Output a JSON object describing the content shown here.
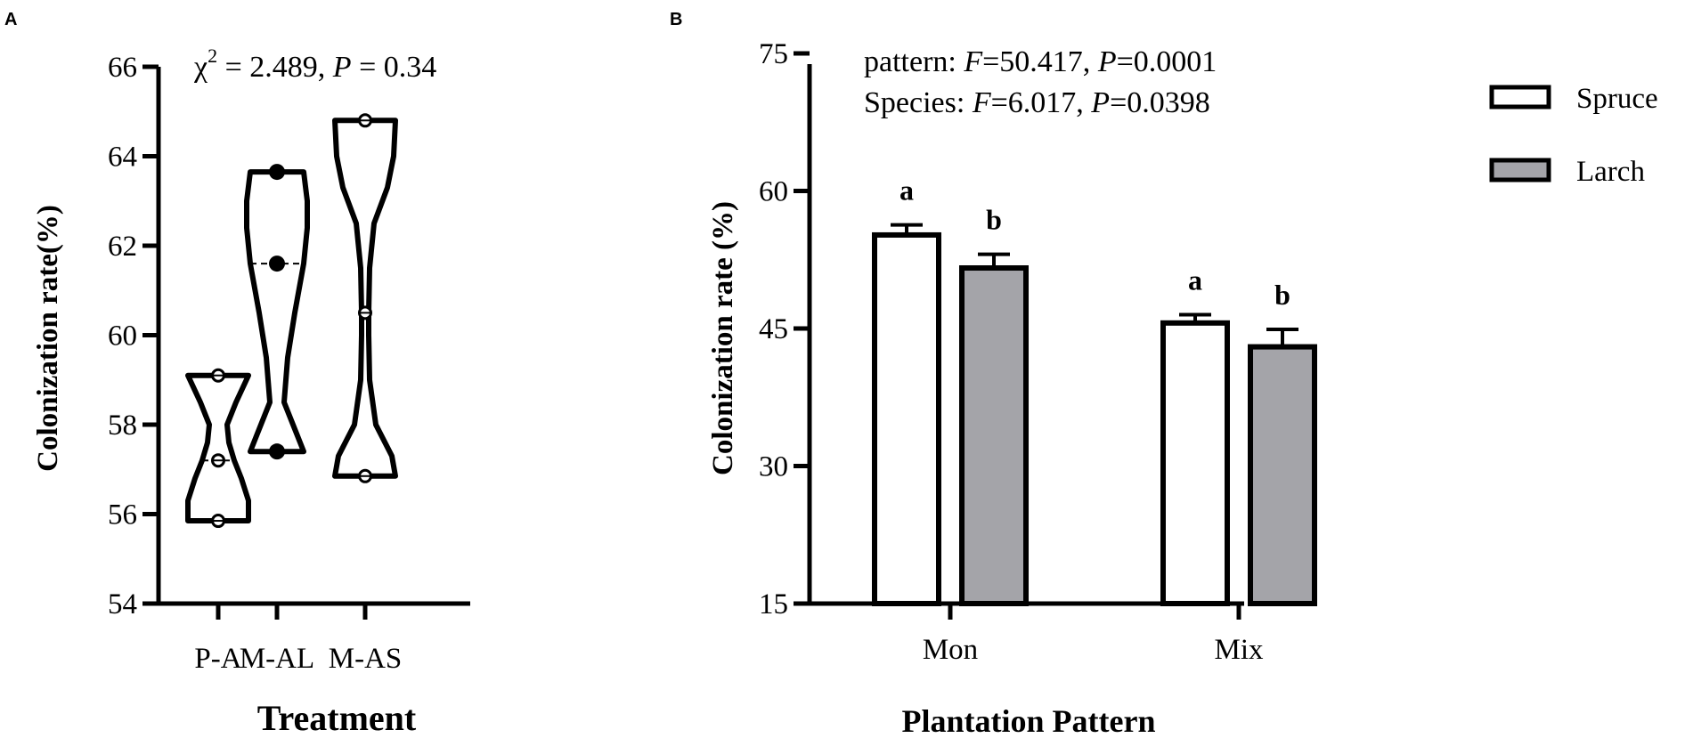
{
  "chart_data": [
    {
      "panel": "A",
      "type": "violin",
      "ylabel": "Colonization rate(%)",
      "xlabel": "Treatment",
      "ylim": [
        54,
        66
      ],
      "yticks": [
        "54",
        "56",
        "58",
        "60",
        "62",
        "64",
        "66"
      ],
      "annotation": {
        "chi": "χ",
        "sup": "2",
        "eq": " = 2.489, ",
        "p": "P",
        "p_eq": " = 0.34"
      },
      "groups": [
        {
          "label": "P-A",
          "points": [
            59.1,
            57.2,
            55.85
          ],
          "median": 57.2,
          "min": 55.85,
          "max": 59.1,
          "profile": [
            [
              55.85,
              0.34
            ],
            [
              56.3,
              0.34
            ],
            [
              56.8,
              0.26
            ],
            [
              57.2,
              0.18
            ],
            [
              57.6,
              0.12
            ],
            [
              58.0,
              0.1
            ],
            [
              58.5,
              0.2
            ],
            [
              59.1,
              0.34
            ]
          ]
        },
        {
          "label": "M-AL",
          "points": [
            63.65,
            61.6,
            57.4
          ],
          "median": 61.6,
          "min": 57.4,
          "max": 63.65,
          "profile": [
            [
              57.4,
              0.3
            ],
            [
              57.9,
              0.2
            ],
            [
              58.5,
              0.08
            ],
            [
              59.5,
              0.12
            ],
            [
              60.5,
              0.2
            ],
            [
              61.6,
              0.3
            ],
            [
              62.4,
              0.34
            ],
            [
              63.0,
              0.34
            ],
            [
              63.65,
              0.3
            ]
          ]
        },
        {
          "label": "M-AS",
          "points": [
            64.8,
            60.5,
            56.85
          ],
          "median": 60.5,
          "min": 56.85,
          "max": 64.8,
          "profile": [
            [
              56.85,
              0.34
            ],
            [
              57.3,
              0.3
            ],
            [
              58.0,
              0.12
            ],
            [
              59.0,
              0.05
            ],
            [
              60.0,
              0.04
            ],
            [
              60.5,
              0.04
            ],
            [
              61.5,
              0.05
            ],
            [
              62.5,
              0.1
            ],
            [
              63.3,
              0.25
            ],
            [
              64.0,
              0.32
            ],
            [
              64.8,
              0.34
            ]
          ]
        }
      ]
    },
    {
      "panel": "B",
      "type": "bar",
      "ylabel": "Colonization rate (%)",
      "xlabel": "Plantation Pattern",
      "ylim": [
        15,
        75
      ],
      "yticks": [
        "15",
        "30",
        "45",
        "60",
        "75"
      ],
      "categories": [
        "Mon",
        "Mix"
      ],
      "annotation_lines": [
        {
          "a": "pattern: ",
          "f": "F",
          "b": "=50.417, ",
          "p": "P",
          "c": "=0.0001"
        },
        {
          "a": "Species: ",
          "f": "F",
          "b": "=6.017, ",
          "p": "P",
          "c": "=0.0398"
        }
      ],
      "series": [
        {
          "name": "Spruce",
          "color": "#ffffff",
          "values": [
            55.2,
            45.6
          ],
          "errors": [
            1.1,
            0.9
          ],
          "letters": [
            "a",
            "a"
          ]
        },
        {
          "name": "Larch",
          "color": "#a4a4a9",
          "values": [
            51.6,
            43.0
          ],
          "errors": [
            1.5,
            1.9
          ],
          "letters": [
            "b",
            "b"
          ]
        }
      ]
    }
  ],
  "panels": {
    "a_letter": "A",
    "b_letter": "B"
  }
}
